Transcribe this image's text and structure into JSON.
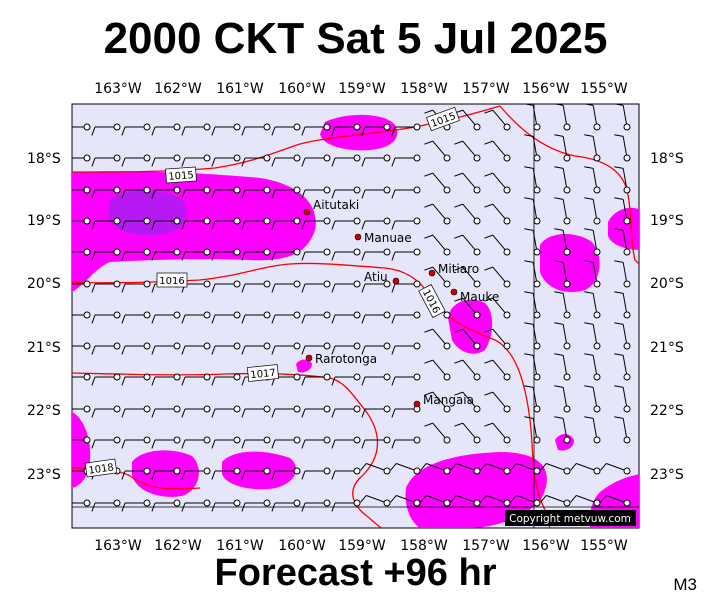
{
  "title": "2000 CKT Sat 5 Jul 2025",
  "footer": "Forecast +96 hr",
  "tag": "M3",
  "copyright": "Copyright metvuw.com",
  "lon_labels": [
    "163°W",
    "162°W",
    "161°W",
    "160°W",
    "159°W",
    "158°W",
    "157°W",
    "156°W",
    "155°W"
  ],
  "lat_labels": [
    "18°S",
    "19°S",
    "20°S",
    "21°S",
    "22°S",
    "23°S"
  ],
  "places": [
    {
      "name": "Aitutaki"
    },
    {
      "name": "Manuae"
    },
    {
      "name": "Atiu"
    },
    {
      "name": "Mitiaro"
    },
    {
      "name": "Mauke"
    },
    {
      "name": "Rarotonga"
    },
    {
      "name": "Mangaia"
    }
  ],
  "isobars": [
    {
      "label": "1015"
    },
    {
      "label": "1015"
    },
    {
      "label": "1016"
    },
    {
      "label": "1016"
    },
    {
      "label": "1017"
    },
    {
      "label": "1018"
    }
  ],
  "colors": {
    "sea": "#e6e6fa",
    "rain_light": "#ff00ff",
    "rain_heavy": "#a020f0",
    "isobar": "#ff0000",
    "town": "#cc0000"
  }
}
